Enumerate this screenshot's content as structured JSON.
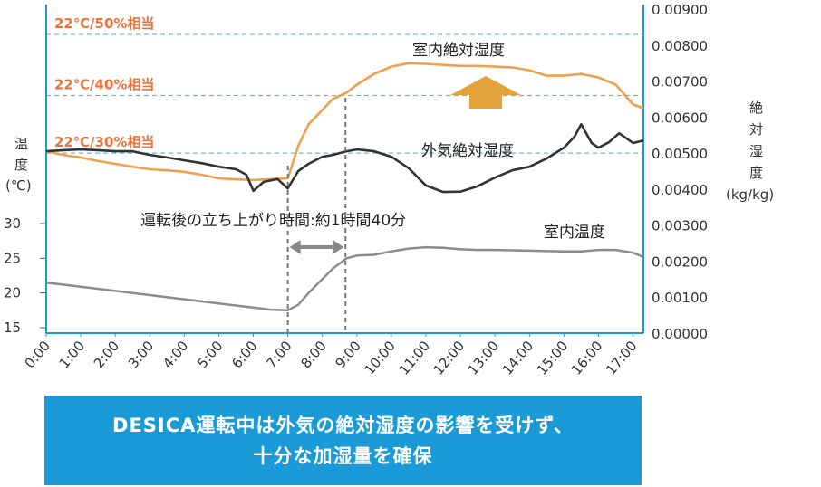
{
  "chart_data": {
    "type": "line",
    "x_label_ticks": [
      "0:00",
      "1:00",
      "2:00",
      "3:00",
      "4:00",
      "5:00",
      "6:00",
      "7:00",
      "8:00",
      "9:00",
      "10:00",
      "11:00",
      "12:00",
      "13:00",
      "14:00",
      "15:00",
      "16:00",
      "17:00"
    ],
    "x_range_hours": [
      0,
      17.3
    ],
    "left_axis": {
      "label_chars": [
        "温",
        "度",
        "(℃)"
      ],
      "ticks": [
        "30",
        "25",
        "20",
        "15"
      ],
      "ylim": [
        15,
        30
      ]
    },
    "right_axis": {
      "label_chars": [
        "絶",
        "対",
        "湿",
        "度",
        "(kg/kg)"
      ],
      "ticks": [
        "0.00900",
        "0.00800",
        "0.00700",
        "0.00600",
        "0.00500",
        "0.00400",
        "0.00300",
        "0.00200",
        "0.00100",
        "0.00000"
      ],
      "ylim": [
        0,
        0.009
      ]
    },
    "reference_lines": [
      {
        "label": "22℃/50%相当",
        "value": 0.0083
      },
      {
        "label": "22℃/40%相当",
        "value": 0.0066
      },
      {
        "label": "22℃/30%相当",
        "value": 0.005
      }
    ],
    "series": [
      {
        "name": "室内絶対湿度",
        "axis": "right",
        "color": "#f0a04b",
        "x": [
          0,
          0.5,
          1,
          1.5,
          2,
          2.5,
          3,
          3.5,
          4,
          4.5,
          5,
          5.5,
          6,
          6.5,
          7,
          7.3,
          7.6,
          8,
          8.3,
          8.7,
          9,
          9.5,
          10,
          10.5,
          11,
          11.5,
          12,
          12.5,
          13,
          13.5,
          14,
          14.5,
          15,
          15.5,
          16,
          16.5,
          17,
          17.3
        ],
        "y": [
          0.00505,
          0.00495,
          0.00488,
          0.00478,
          0.0047,
          0.00462,
          0.00455,
          0.00452,
          0.00448,
          0.0044,
          0.0043,
          0.00427,
          0.00425,
          0.00428,
          0.0043,
          0.0052,
          0.0058,
          0.0062,
          0.0065,
          0.00668,
          0.0069,
          0.0072,
          0.0074,
          0.0075,
          0.00748,
          0.00745,
          0.00742,
          0.00742,
          0.0074,
          0.00738,
          0.0073,
          0.00715,
          0.00715,
          0.0072,
          0.0071,
          0.0069,
          0.00635,
          0.00625
        ]
      },
      {
        "name": "外気絶対湿度",
        "axis": "right",
        "color": "#333333",
        "x": [
          0,
          0.5,
          1,
          1.5,
          2,
          2.5,
          3,
          3.5,
          4,
          4.5,
          5,
          5.5,
          5.8,
          6,
          6.3,
          6.7,
          7,
          7.3,
          7.6,
          8,
          8.3,
          8.7,
          9,
          9.5,
          10,
          10.5,
          11,
          11.5,
          12,
          12.5,
          13,
          13.5,
          14,
          14.5,
          15,
          15.3,
          15.5,
          15.8,
          16,
          16.3,
          16.6,
          17,
          17.3
        ],
        "y": [
          0.00505,
          0.00508,
          0.0051,
          0.00508,
          0.00505,
          0.00505,
          0.00495,
          0.00488,
          0.0048,
          0.00472,
          0.00462,
          0.00455,
          0.0044,
          0.00395,
          0.0042,
          0.00428,
          0.00402,
          0.0045,
          0.0047,
          0.0049,
          0.00495,
          0.00505,
          0.0051,
          0.00505,
          0.0049,
          0.00458,
          0.0041,
          0.00392,
          0.00393,
          0.00408,
          0.00432,
          0.00452,
          0.00462,
          0.00485,
          0.00515,
          0.00545,
          0.0058,
          0.00528,
          0.00515,
          0.0053,
          0.00555,
          0.00528,
          0.00535
        ]
      },
      {
        "name": "室内温度",
        "axis": "left",
        "color": "#8c8c8c",
        "x": [
          0,
          1,
          2,
          3,
          4,
          5,
          6,
          6.5,
          7,
          7.3,
          7.6,
          8,
          8.3,
          8.7,
          9,
          9.5,
          10,
          10.5,
          11,
          11.5,
          12,
          12.5,
          13,
          14,
          15,
          15.5,
          16,
          16.5,
          17,
          17.3
        ],
        "y": [
          21.5,
          20.9,
          20.3,
          19.7,
          19.1,
          18.5,
          17.9,
          17.6,
          17.5,
          18.3,
          20,
          22,
          23.5,
          25.0,
          25.4,
          25.5,
          26.0,
          26.4,
          26.6,
          26.5,
          26.3,
          26.2,
          26.2,
          26.1,
          26.0,
          26.0,
          26.2,
          26.2,
          25.8,
          25.2
        ]
      }
    ],
    "annotations": {
      "indoor_abs_humidity": "室内絶対湿度",
      "outdoor_abs_humidity": "外気絶対湿度",
      "indoor_temp": "室内温度",
      "rise_time": "運転後の立ち上がり時間:約1時間40分",
      "rise_start_hour": 7,
      "rise_end_hour": 8.67
    }
  },
  "banner": {
    "line1": "DESICA運転中は外気の絶対湿度の影響を受けず、",
    "line2": "十分な加湿量を確保"
  }
}
